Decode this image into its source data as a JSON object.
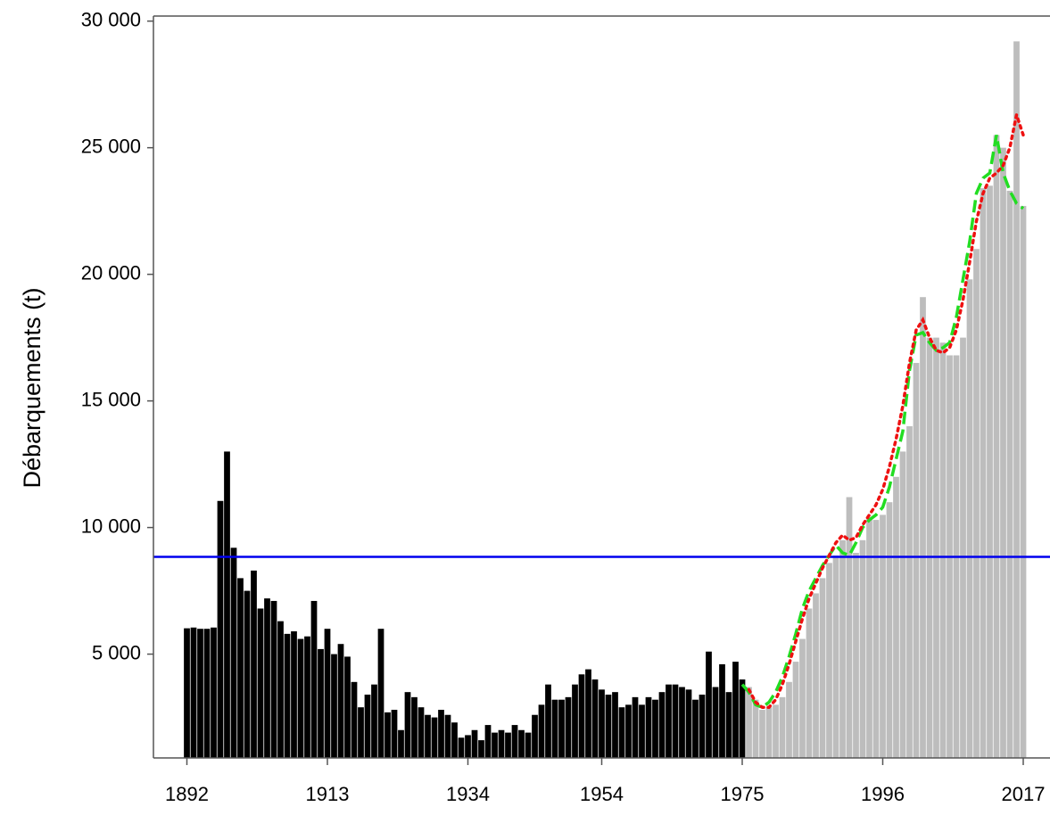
{
  "chart_data": {
    "type": "bar",
    "y_label": "Débarquements (t)",
    "x": [
      1892,
      1893,
      1894,
      1895,
      1896,
      1897,
      1898,
      1899,
      1900,
      1901,
      1902,
      1903,
      1904,
      1905,
      1906,
      1907,
      1908,
      1909,
      1910,
      1911,
      1912,
      1913,
      1914,
      1915,
      1916,
      1917,
      1918,
      1919,
      1920,
      1921,
      1922,
      1923,
      1924,
      1925,
      1926,
      1927,
      1928,
      1929,
      1930,
      1931,
      1932,
      1933,
      1934,
      1935,
      1936,
      1937,
      1938,
      1939,
      1940,
      1941,
      1942,
      1943,
      1944,
      1945,
      1946,
      1947,
      1948,
      1949,
      1950,
      1951,
      1952,
      1953,
      1954,
      1955,
      1956,
      1957,
      1958,
      1959,
      1960,
      1961,
      1962,
      1963,
      1964,
      1965,
      1966,
      1967,
      1968,
      1969,
      1970,
      1971,
      1972,
      1973,
      1974,
      1975,
      1976,
      1977,
      1978,
      1979,
      1980,
      1981,
      1982,
      1983,
      1984,
      1985,
      1986,
      1987,
      1988,
      1989,
      1990,
      1991,
      1992,
      1993,
      1994,
      1995,
      1996,
      1997,
      1998,
      1999,
      2000,
      2001,
      2002,
      2003,
      2004,
      2005,
      2006,
      2007,
      2008,
      2009,
      2010,
      2011,
      2012,
      2013,
      2014,
      2015,
      2016,
      2017
    ],
    "series": [
      {
        "color": "#000000",
        "values": [
          6020,
          6050,
          6000,
          6000,
          6050,
          11050,
          13000,
          9200,
          8000,
          7500,
          8300,
          6800,
          7200,
          7100,
          6300,
          5800,
          5900,
          5600,
          5700,
          7100,
          5200,
          6000,
          5000,
          5400,
          4900,
          3900,
          2900,
          3400,
          3800,
          6000,
          2700,
          2800,
          2000,
          3500,
          3300,
          2900,
          2600,
          2500,
          2800,
          2600,
          2300,
          1700,
          1800,
          2000,
          1600,
          2200,
          1900,
          2000,
          1900,
          2200,
          2000,
          1900,
          2600,
          3000,
          3800,
          3200,
          3200,
          3300,
          3800,
          4200,
          4400,
          4000,
          3600,
          3400,
          3500,
          2900,
          3000,
          3300,
          3000,
          3300,
          3200,
          3500,
          3800,
          3800,
          3700,
          3600,
          3200,
          3400,
          5100,
          3700,
          4600,
          3500,
          4700,
          4000,
          null,
          null,
          null,
          null,
          null,
          null,
          null,
          null,
          null,
          null,
          null,
          null,
          null,
          null,
          null,
          null,
          null,
          null,
          null,
          null,
          null,
          null,
          null,
          null,
          null,
          null,
          null,
          null,
          null,
          null,
          null,
          null,
          null,
          null,
          null,
          null,
          null,
          null,
          null,
          null,
          null,
          null
        ]
      },
      {
        "color": "#bdbdbd",
        "values": [
          null,
          null,
          null,
          null,
          null,
          null,
          null,
          null,
          null,
          null,
          null,
          null,
          null,
          null,
          null,
          null,
          null,
          null,
          null,
          null,
          null,
          null,
          null,
          null,
          null,
          null,
          null,
          null,
          null,
          null,
          null,
          null,
          null,
          null,
          null,
          null,
          null,
          null,
          null,
          null,
          null,
          null,
          null,
          null,
          null,
          null,
          null,
          null,
          null,
          null,
          null,
          null,
          null,
          null,
          null,
          null,
          null,
          null,
          null,
          null,
          null,
          null,
          null,
          null,
          null,
          null,
          null,
          null,
          null,
          null,
          null,
          null,
          null,
          null,
          null,
          null,
          null,
          null,
          null,
          null,
          null,
          null,
          null,
          null,
          3700,
          3200,
          2800,
          2900,
          3000,
          3300,
          3900,
          4700,
          5600,
          6800,
          7400,
          8000,
          8600,
          8900,
          9500,
          11200,
          9000,
          9500,
          10400,
          10300,
          10500,
          11000,
          12000,
          13000,
          14000,
          16500,
          19100,
          17500,
          17500,
          17300,
          16800,
          16800,
          17500,
          19800,
          21000,
          23400,
          23500,
          25500,
          25000,
          23300,
          29200,
          22700
        ]
      }
    ],
    "lines": [
      {
        "color": "#22dd22",
        "style": "dashed",
        "x": [
          1975,
          1976,
          1977,
          1978,
          1979,
          1980,
          1981,
          1982,
          1983,
          1984,
          1985,
          1986,
          1987,
          1988,
          1989,
          1990,
          1991,
          1992,
          1993,
          1994,
          1995,
          1996,
          1997,
          1998,
          1999,
          2000,
          2001,
          2002,
          2003,
          2004,
          2005,
          2006,
          2007,
          2008,
          2009,
          2010,
          2011,
          2012,
          2013,
          2014,
          2015,
          2016,
          2017
        ],
        "values": [
          3800,
          3500,
          3000,
          2900,
          3100,
          3500,
          4100,
          4900,
          5800,
          6800,
          7500,
          8000,
          8500,
          8900,
          9300,
          9000,
          8900,
          9400,
          10000,
          10300,
          10500,
          10800,
          11600,
          12700,
          13800,
          16200,
          17600,
          17700,
          17300,
          17000,
          17100,
          17300,
          18300,
          19800,
          21300,
          23200,
          23800,
          24000,
          25500,
          24000,
          23300,
          22800,
          22600
        ]
      },
      {
        "color": "#ee1111",
        "style": "dotted",
        "x": [
          1976,
          1977,
          1978,
          1979,
          1980,
          1981,
          1982,
          1983,
          1984,
          1985,
          1986,
          1987,
          1988,
          1989,
          1990,
          1991,
          1992,
          1993,
          1994,
          1995,
          1996,
          1997,
          1998,
          1999,
          2000,
          2001,
          2002,
          2003,
          2004,
          2005,
          2006,
          2007,
          2008,
          2009,
          2010,
          2011,
          2012,
          2013,
          2014,
          2015,
          2016,
          2017
        ],
        "values": [
          3600,
          3100,
          2900,
          2900,
          3200,
          3800,
          4600,
          5500,
          6400,
          7200,
          7800,
          8400,
          8900,
          9400,
          9700,
          9500,
          9600,
          10100,
          10500,
          10900,
          11500,
          12400,
          13500,
          14800,
          16500,
          17800,
          18200,
          17500,
          17000,
          16900,
          17100,
          17800,
          19000,
          20500,
          22100,
          23200,
          23800,
          24000,
          24300,
          25000,
          26300,
          25500
        ]
      }
    ],
    "reference_line": {
      "value": 8840,
      "color": "#0000ee"
    },
    "xlim": [
      1887,
      2021
    ],
    "ylim": [
      900,
      30200
    ],
    "xticks": [
      1892,
      1913,
      1934,
      1954,
      1975,
      1996,
      2017
    ],
    "yticks": [
      {
        "value": 5000,
        "label": "5 000"
      },
      {
        "value": 10000,
        "label": "10 000"
      },
      {
        "value": 15000,
        "label": "15 000"
      },
      {
        "value": 20000,
        "label": "20 000"
      },
      {
        "value": 25000,
        "label": "25 000"
      },
      {
        "value": 30000,
        "label": "30 000"
      }
    ]
  }
}
